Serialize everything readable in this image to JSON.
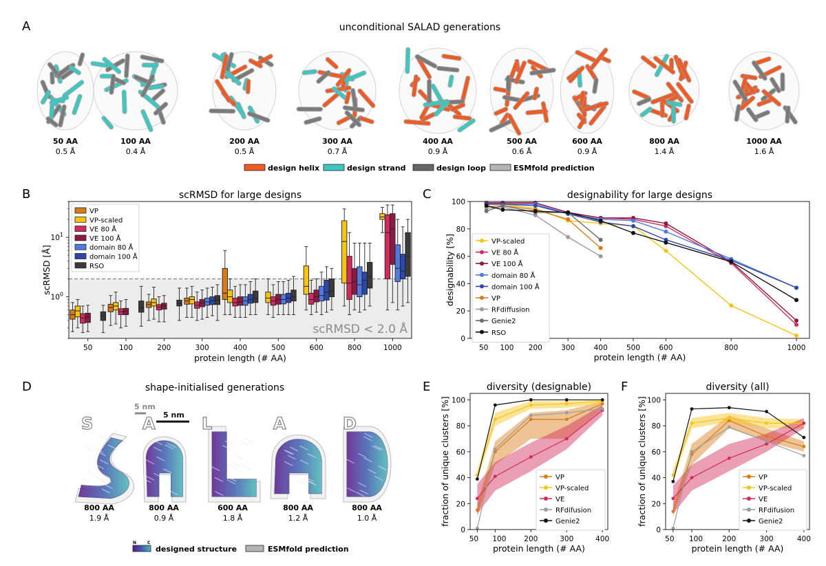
{
  "panelA": {
    "label": "A",
    "title": "unconditional SALAD generations",
    "structures": [
      {
        "length": "50 AA",
        "rmsd": "0.5 Å",
        "helix": 0.0,
        "strand": 0.55
      },
      {
        "length": "100 AA",
        "rmsd": "0.4 Å",
        "helix": 0.05,
        "strand": 0.6
      },
      {
        "length": "200 AA",
        "rmsd": "0.5 Å",
        "helix": 0.45,
        "strand": 0.3
      },
      {
        "length": "300 AA",
        "rmsd": "0.7 Å",
        "helix": 0.6,
        "strand": 0.15
      },
      {
        "length": "400 AA",
        "rmsd": "0.9 Å",
        "helix": 0.55,
        "strand": 0.3
      },
      {
        "length": "500 AA",
        "rmsd": "0.6 Å",
        "helix": 0.8,
        "strand": 0.0
      },
      {
        "length": "600 AA",
        "rmsd": "0.9 Å",
        "helix": 0.6,
        "strand": 0.15
      },
      {
        "length": "800 AA",
        "rmsd": "1.4 Å",
        "helix": 0.55,
        "strand": 0.25
      },
      {
        "length": "1000 AA",
        "rmsd": "1.6 Å",
        "helix": 0.8,
        "strand": 0.0
      }
    ],
    "legend": [
      {
        "label": "design helix",
        "color": "#f15a22"
      },
      {
        "label": "design strand",
        "color": "#3cc8c0"
      },
      {
        "label": "design loop",
        "color": "#666666"
      },
      {
        "label": "ESMfold prediction",
        "color": "#b5b5b5"
      }
    ]
  },
  "panelB": {
    "label": "B",
    "annotation": "scRMSD < 2.0 Å"
  },
  "panelC": {
    "label": "C"
  },
  "panelD": {
    "label": "D",
    "title": "shape-initialised generations",
    "scale_a": "5 nm",
    "scale_b": "5 nm",
    "letters": [
      "S",
      "A",
      "L",
      "A",
      "D"
    ],
    "structures": [
      {
        "length": "800 AA",
        "rmsd": "1.9 Å"
      },
      {
        "length": "800 AA",
        "rmsd": "0.9 Å"
      },
      {
        "length": "600 AA",
        "rmsd": "1.8 Å"
      },
      {
        "length": "800 AA",
        "rmsd": "1.2 Å"
      },
      {
        "length": "800 AA",
        "rmsd": "1.0 Å"
      }
    ],
    "legend_n": "N",
    "legend_c": "C",
    "legend_designed": "designed structure",
    "legend_esm": "ESMfold prediction"
  },
  "panelE": {
    "label": "E"
  },
  "panelF": {
    "label": "F"
  },
  "chart_data": [
    {
      "id": "B",
      "type": "box",
      "title": "scRMSD for large designs",
      "xlabel": "protein length (# AA)",
      "ylabel": "scRMSD [Å]",
      "yscale": "log",
      "ylim": [
        0.2,
        40
      ],
      "yticks": [
        {
          "v": 1,
          "base": "10",
          "exp": "0"
        },
        {
          "v": 10,
          "base": "10",
          "exp": "1"
        }
      ],
      "threshold": 2.0,
      "categories": [
        "50",
        "100",
        "200",
        "300",
        "400",
        "500",
        "600",
        "800",
        "1000"
      ],
      "legend_position": "top-left",
      "series": [
        {
          "name": "VP",
          "color": "#d97a16",
          "boxes": [
            [
              0.26,
              0.42,
              0.5,
              0.6,
              0.8
            ],
            [
              0.33,
              0.56,
              0.66,
              0.75,
              1.05
            ],
            [
              0.4,
              0.66,
              0.74,
              0.82,
              1.1
            ],
            [
              0.45,
              0.75,
              0.85,
              0.95,
              1.4
            ],
            [
              0.5,
              0.9,
              1.15,
              3.0,
              6.0
            ],
            null,
            null,
            null,
            null
          ]
        },
        {
          "name": "VP-scaled",
          "color": "#f7c315",
          "boxes": [
            [
              0.3,
              0.46,
              0.58,
              0.7,
              0.9
            ],
            [
              0.35,
              0.6,
              0.7,
              0.8,
              1.2
            ],
            [
              0.42,
              0.7,
              0.8,
              0.92,
              1.45
            ],
            [
              0.45,
              0.76,
              0.9,
              1.0,
              1.5
            ],
            [
              0.5,
              0.8,
              1.0,
              1.3,
              2.0
            ],
            [
              0.5,
              0.8,
              0.95,
              1.2,
              2.0
            ],
            [
              0.6,
              1.1,
              1.5,
              3.3,
              7.0
            ],
            [
              0.7,
              1.7,
              8.5,
              19.0,
              30.0
            ],
            [
              12.0,
              20.0,
              22.0,
              25.0,
              32.0
            ]
          ]
        },
        {
          "name": "VE 80 Å",
          "color": "#d12a5c",
          "boxes": [
            [
              0.25,
              0.36,
              0.44,
              0.52,
              0.7
            ],
            [
              0.3,
              0.5,
              0.56,
              0.63,
              0.85
            ],
            [
              0.38,
              0.6,
              0.67,
              0.74,
              1.0
            ],
            [
              0.4,
              0.64,
              0.72,
              0.82,
              1.2
            ],
            [
              0.45,
              0.7,
              0.8,
              0.95,
              1.5
            ],
            [
              0.45,
              0.72,
              0.85,
              1.0,
              1.6
            ],
            [
              0.5,
              0.75,
              0.9,
              1.15,
              1.9
            ],
            [
              0.5,
              0.9,
              1.7,
              4.8,
              12.0
            ],
            [
              0.6,
              2.0,
              12.0,
              24.0,
              35.0
            ]
          ]
        },
        {
          "name": "VE 100 Å",
          "color": "#8c1a42",
          "boxes": [
            [
              0.26,
              0.37,
              0.46,
              0.53,
              0.72
            ],
            [
              0.32,
              0.5,
              0.57,
              0.64,
              0.9
            ],
            [
              0.38,
              0.62,
              0.7,
              0.78,
              1.05
            ],
            [
              0.42,
              0.68,
              0.78,
              0.9,
              1.3
            ],
            [
              0.45,
              0.72,
              0.82,
              1.0,
              1.6
            ],
            [
              0.5,
              0.75,
              0.9,
              1.1,
              1.8
            ],
            [
              0.55,
              0.82,
              1.0,
              1.3,
              2.0
            ],
            [
              0.6,
              1.1,
              1.8,
              3.0,
              8.0
            ],
            [
              0.8,
              3.5,
              14.0,
              25.0,
              35.0
            ]
          ]
        },
        {
          "name": "domain 80 Å",
          "color": "#4f7be0",
          "boxes": [
            null,
            null,
            null,
            [
              0.45,
              0.72,
              0.82,
              0.95,
              1.4
            ],
            [
              0.45,
              0.72,
              0.85,
              1.0,
              1.6
            ],
            [
              0.5,
              0.76,
              0.9,
              1.1,
              1.8
            ],
            [
              0.5,
              0.85,
              1.05,
              1.5,
              2.6
            ],
            [
              0.55,
              1.0,
              1.6,
              3.2,
              8.0
            ],
            [
              0.6,
              1.8,
              3.0,
              7.5,
              20.0
            ]
          ]
        },
        {
          "name": "domain 100 Å",
          "color": "#2d47a8",
          "boxes": [
            null,
            null,
            null,
            [
              0.48,
              0.74,
              0.86,
              1.0,
              1.45
            ],
            [
              0.5,
              0.78,
              0.9,
              1.1,
              1.8
            ],
            [
              0.5,
              0.8,
              0.95,
              1.15,
              1.9
            ],
            [
              0.55,
              0.88,
              1.2,
              1.9,
              3.2
            ],
            [
              0.6,
              1.1,
              1.9,
              2.6,
              8.0
            ],
            [
              0.7,
              2.0,
              2.7,
              5.2,
              15.0
            ]
          ]
        },
        {
          "name": "RSO",
          "color": "#3b3b3b",
          "boxes": [
            [
              0.25,
              0.4,
              0.48,
              0.56,
              0.72
            ],
            [
              0.32,
              0.55,
              0.65,
              0.85,
              1.5
            ],
            [
              0.4,
              0.7,
              0.78,
              0.88,
              1.4
            ],
            [
              0.4,
              0.74,
              0.88,
              1.05,
              1.6
            ],
            [
              0.5,
              0.8,
              0.95,
              1.25,
              2.0
            ],
            [
              0.5,
              0.85,
              1.0,
              1.3,
              2.2
            ],
            [
              0.6,
              1.0,
              1.25,
              2.0,
              3.0
            ],
            [
              0.7,
              1.4,
              2.2,
              3.8,
              8.0
            ],
            [
              0.8,
              2.2,
              4.8,
              12.0,
              20.0
            ]
          ]
        }
      ]
    },
    {
      "id": "C",
      "type": "line",
      "title": "designability for large designs",
      "xlabel": "protein length (# AA)",
      "ylabel": "designability [%]",
      "xlim": [
        0,
        1040
      ],
      "ylim": [
        0,
        100
      ],
      "x": [
        50,
        100,
        200,
        300,
        400,
        500,
        600,
        800,
        1000
      ],
      "xticks": [
        "50",
        "100",
        "200",
        "300",
        "400",
        "500",
        "600",
        "800",
        "1000"
      ],
      "yticks": [
        "0",
        "20",
        "40",
        "60",
        "80",
        "100"
      ],
      "legend_position": "bottom-left",
      "series": [
        {
          "name": "VP-scaled",
          "color": "#f7c315",
          "values": [
            98,
            98,
            95,
            86,
            84,
            82,
            64,
            24,
            2
          ]
        },
        {
          "name": "VE 80 Å",
          "color": "#d12a5c",
          "values": [
            99,
            99,
            99,
            92,
            88,
            87,
            82,
            55,
            10
          ]
        },
        {
          "name": "VE 100 Å",
          "color": "#8c1a42",
          "values": [
            99,
            99,
            99,
            92,
            88,
            88,
            84,
            56,
            13
          ]
        },
        {
          "name": "domain 80 Å",
          "color": "#4f7be0",
          "values": [
            98,
            98,
            98,
            91,
            87,
            86,
            78,
            58,
            37
          ]
        },
        {
          "name": "domain 100 Å",
          "color": "#2d47a8",
          "values": [
            98,
            98,
            97,
            91,
            85,
            82,
            72,
            57,
            37
          ]
        },
        {
          "name": "VP",
          "color": "#d97a16",
          "values": [
            96,
            97,
            94,
            87,
            66,
            null,
            null,
            null,
            null
          ]
        },
        {
          "name": "RFdiffusion",
          "color": "#9c9c9c",
          "values": [
            95,
            96,
            90,
            74,
            60,
            null,
            null,
            null,
            null
          ]
        },
        {
          "name": "Genie2",
          "color": "#6e6e6e",
          "values": [
            93,
            97,
            92,
            92,
            72,
            null,
            null,
            null,
            null
          ]
        },
        {
          "name": "RSO",
          "color": "#111111",
          "values": [
            97,
            94,
            93,
            92,
            86,
            77,
            70,
            56,
            28
          ]
        }
      ]
    },
    {
      "id": "E",
      "type": "line",
      "title": "diversity (designable)",
      "xlabel": "protein length (# AA)",
      "ylabel": "fraction of unique clusters [%]",
      "xlim": [
        30,
        415
      ],
      "ylim": [
        0,
        105
      ],
      "x": [
        50,
        100,
        200,
        300,
        400
      ],
      "xticks": [
        "50",
        "100",
        "200",
        "300",
        "400"
      ],
      "yticks": [
        "0",
        "20",
        "40",
        "60",
        "80",
        "100"
      ],
      "legend_position": "bottom-right",
      "series": [
        {
          "name": "VP",
          "color": "#d97a16",
          "values": [
            15,
            60,
            85,
            85,
            97
          ],
          "band": [
            [
              10,
              20
            ],
            [
              50,
              68
            ],
            [
              70,
              90
            ],
            [
              70,
              92
            ],
            [
              93,
              99
            ]
          ]
        },
        {
          "name": "VP-scaled",
          "color": "#f7c315",
          "values": [
            42,
            85,
            96,
            97,
            99
          ],
          "band": [
            [
              38,
              46
            ],
            [
              80,
              90
            ],
            [
              93,
              99
            ],
            [
              94,
              99
            ],
            [
              97,
              100
            ]
          ]
        },
        {
          "name": "VE",
          "color": "#d12a5c",
          "values": [
            24,
            41,
            56,
            70,
            92
          ],
          "band": [
            [
              12,
              35
            ],
            [
              30,
              52
            ],
            [
              45,
              67
            ],
            [
              62,
              80
            ],
            [
              88,
              96
            ]
          ]
        },
        {
          "name": "RFdifusion",
          "color": "#9c9c9c",
          "values": [
            1,
            62,
            88,
            90,
            93
          ]
        },
        {
          "name": "Genie2",
          "color": "#111111",
          "values": [
            39,
            96,
            100,
            100,
            100
          ]
        }
      ]
    },
    {
      "id": "F",
      "type": "line",
      "title": "diversity (all)",
      "xlabel": "protein length (# AA)",
      "ylabel": "fraction of unique clusters [%]",
      "xlim": [
        30,
        415
      ],
      "ylim": [
        0,
        105
      ],
      "x": [
        50,
        100,
        200,
        300,
        400
      ],
      "xticks": [
        "50",
        "100",
        "200",
        "300",
        "400"
      ],
      "yticks": [
        "0",
        "20",
        "40",
        "60",
        "80",
        "100"
      ],
      "legend_position": "bottom-right",
      "series": [
        {
          "name": "VP",
          "color": "#d97a16",
          "values": [
            14,
            58,
            84,
            72,
            64
          ],
          "band": [
            [
              10,
              18
            ],
            [
              50,
              66
            ],
            [
              78,
              88
            ],
            [
              68,
              78
            ],
            [
              60,
              68
            ]
          ]
        },
        {
          "name": "VP-scaled",
          "color": "#f7c315",
          "values": [
            42,
            82,
            86,
            82,
            82
          ],
          "band": [
            [
              38,
              46
            ],
            [
              78,
              86
            ],
            [
              83,
              90
            ],
            [
              78,
              86
            ],
            [
              78,
              85
            ]
          ]
        },
        {
          "name": "VE",
          "color": "#d12a5c",
          "values": [
            24,
            40,
            55,
            66,
            82
          ],
          "band": [
            [
              12,
              34
            ],
            [
              30,
              50
            ],
            [
              45,
              66
            ],
            [
              60,
              74
            ],
            [
              78,
              86
            ]
          ]
        },
        {
          "name": "RFdifusion",
          "color": "#9c9c9c",
          "values": [
            1,
            60,
            79,
            68,
            57
          ]
        },
        {
          "name": "Genie2",
          "color": "#111111",
          "values": [
            37,
            93,
            94,
            91,
            71
          ]
        }
      ]
    }
  ]
}
